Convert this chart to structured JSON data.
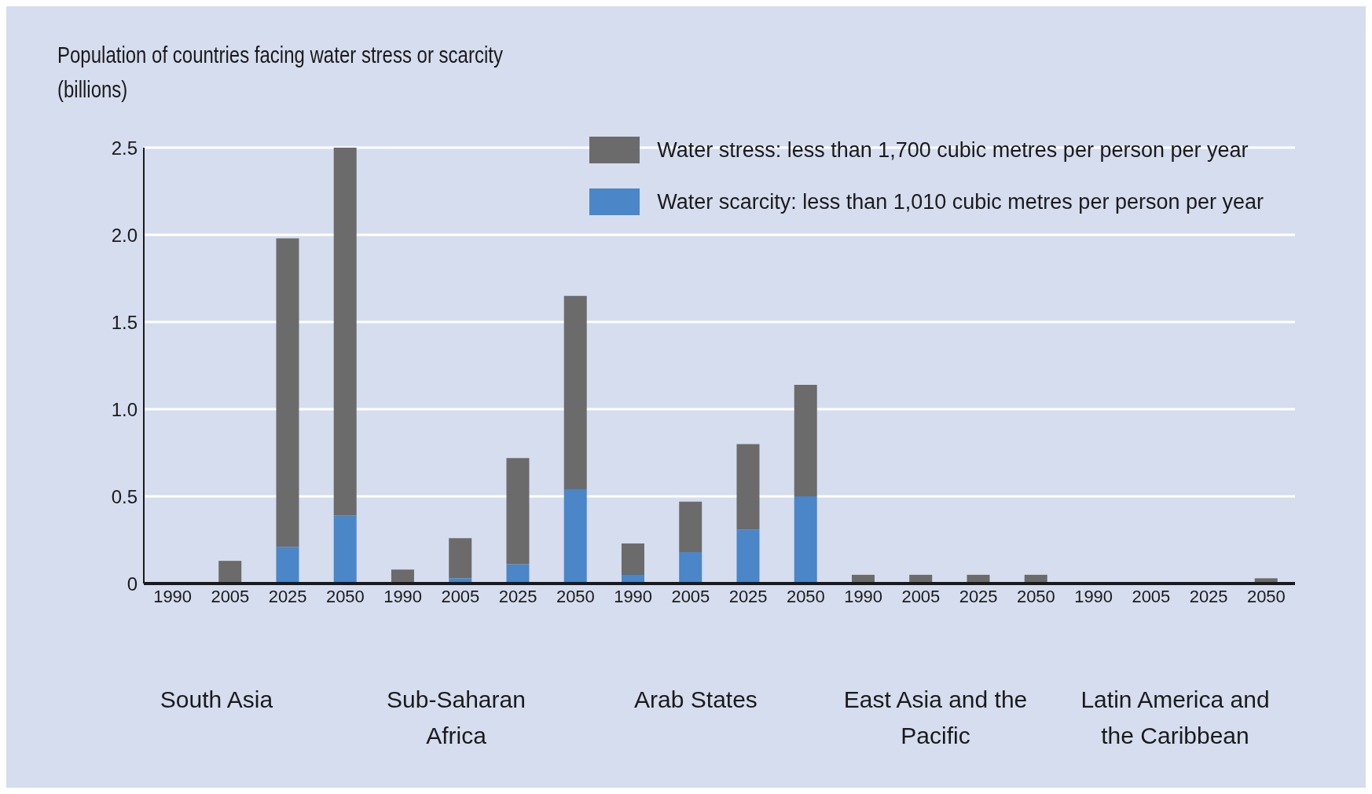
{
  "chart_data": {
    "type": "bar",
    "ylabel": "Population of countries facing water stress or scarcity (billions)",
    "categories": [
      "1990",
      "2005",
      "2025",
      "2050",
      "1990",
      "2005",
      "2025",
      "2050",
      "1990",
      "2005",
      "2025",
      "2050",
      "1990",
      "2005",
      "2025",
      "2050",
      "1990",
      "2005",
      "2025",
      "2050"
    ],
    "annotations": [
      "South Asia",
      "Sub-Saharan Africa",
      "Arab States",
      "East Asia and the Pacific",
      "Latin America and the Caribbean"
    ],
    "stacked": true,
    "series": [
      {
        "name": "Water scarcity: less than 1,010 cubic metres per person per year",
        "color": "#4a86c8",
        "values": [
          0,
          0,
          0.21,
          0.39,
          0,
          0.03,
          0.11,
          0.54,
          0.05,
          0.18,
          0.31,
          0.5,
          0,
          0,
          0,
          0,
          0,
          0,
          0,
          0
        ]
      },
      {
        "name": "Water stress: less than 1,700 cubic metres per person per year",
        "color": "#6b6b6b",
        "values": [
          0,
          0.13,
          1.77,
          2.11,
          0.08,
          0.23,
          0.61,
          1.11,
          0.18,
          0.29,
          0.49,
          0.64,
          0.05,
          0.05,
          0.05,
          0.05,
          0,
          0,
          0,
          0.03
        ]
      }
    ],
    "ylim": [
      0,
      2.5
    ],
    "yticks": [
      0,
      {
        "value": 0.5,
        "label": "0.5"
      },
      {
        "value": 1,
        "label": "1.0"
      },
      {
        "value": 1.5,
        "label": "1.5"
      },
      {
        "value": 2,
        "label": "2.0"
      },
      {
        "value": 2.5,
        "label": "2.5"
      }
    ],
    "grid": "y",
    "legend": "top right"
  }
}
